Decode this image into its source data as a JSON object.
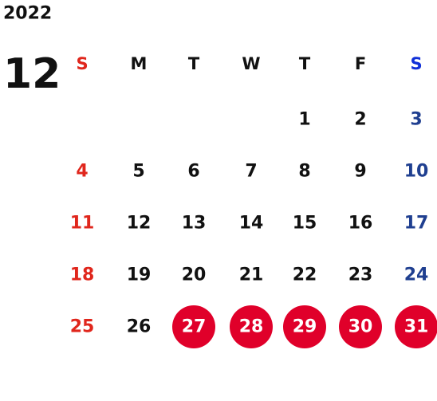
{
  "year": "2022",
  "month": "12",
  "weekdays": [
    "S",
    "M",
    "T",
    "W",
    "T",
    "F",
    "S"
  ],
  "weeks": [
    [
      null,
      null,
      null,
      null,
      1,
      2,
      3
    ],
    [
      4,
      5,
      6,
      7,
      8,
      9,
      10
    ],
    [
      11,
      12,
      13,
      14,
      15,
      16,
      17
    ],
    [
      18,
      19,
      20,
      21,
      22,
      23,
      24
    ],
    [
      25,
      26,
      27,
      28,
      29,
      30,
      31
    ]
  ],
  "highlighted": [
    27,
    28,
    29,
    30,
    31
  ],
  "colors": {
    "sunday": "#e0261c",
    "saturday_header": "#1030d8",
    "saturday": "#1f3f90",
    "weekday": "#111111",
    "highlight": "#e0002a",
    "highlight_text": "#ffffff"
  }
}
